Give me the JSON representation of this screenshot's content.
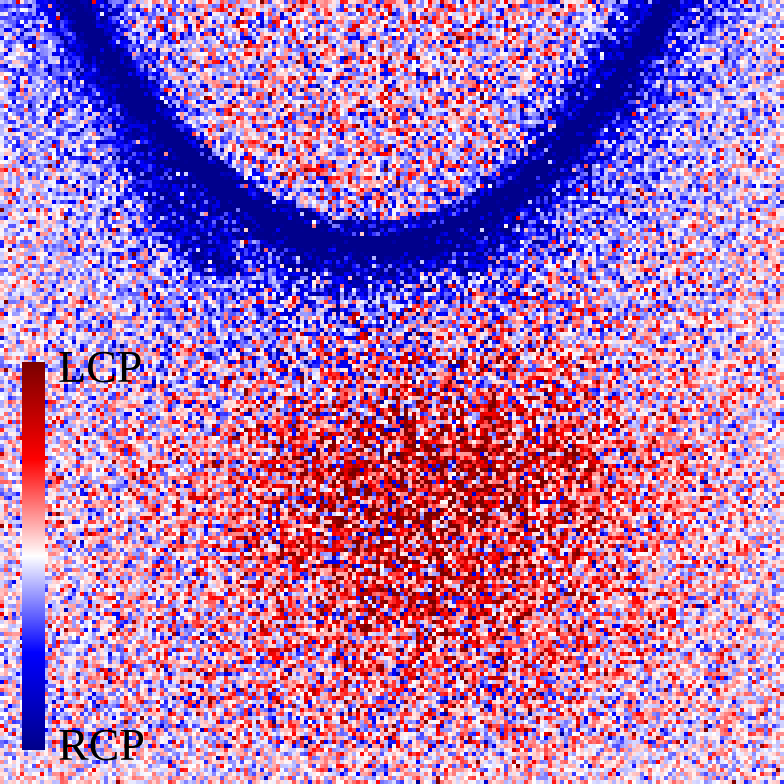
{
  "image": {
    "description_colors": {
      "positive_max": "#7a0000",
      "positive_mid": "#ff1a1a",
      "neutral": "#ffffff",
      "negative_mid": "#1a1aff",
      "negative_max": "#00008b"
    }
  },
  "chart_data": {
    "type": "heatmap",
    "colorbar": {
      "top_label": "LCP",
      "bottom_label": "RCP",
      "colors": [
        "#7a0000",
        "#ff0000",
        "#ffffff",
        "#0000ff",
        "#00008b"
      ]
    }
  }
}
